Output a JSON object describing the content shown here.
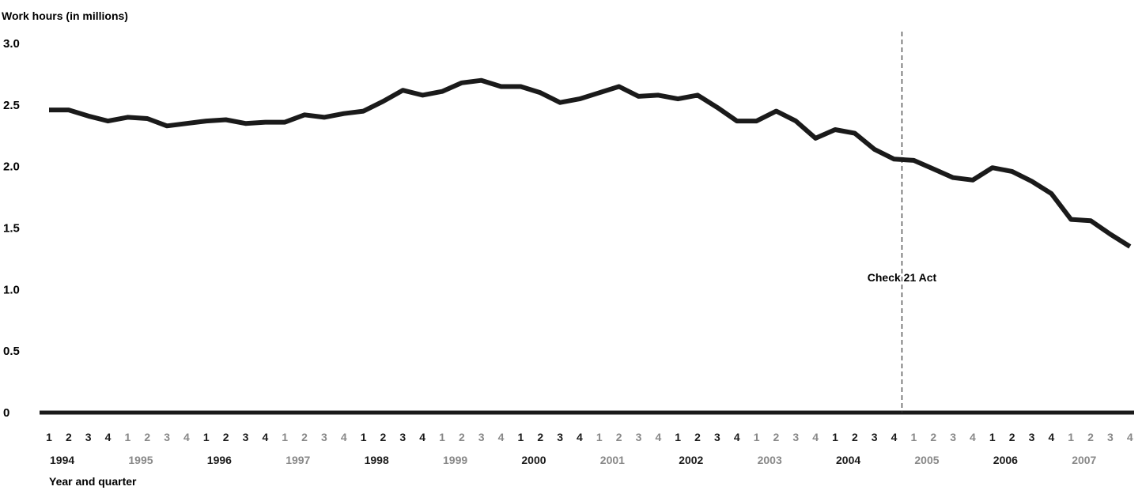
{
  "chart_data": {
    "type": "line",
    "title": "",
    "ylabel": "Work hours (in millions)",
    "xlabel": "Year and quarter",
    "ylim": [
      0,
      3.0
    ],
    "yticks": [
      "3.0",
      "2.5",
      "2.0",
      "1.5",
      "1.0",
      "0.5",
      "0"
    ],
    "ytick_values": [
      3.0,
      2.5,
      2.0,
      1.5,
      1.0,
      0.5,
      0
    ],
    "quarter_labels": [
      "1",
      "2",
      "3",
      "4",
      "1",
      "2",
      "3",
      "4",
      "1",
      "2",
      "3",
      "4",
      "1",
      "2",
      "3",
      "4",
      "1",
      "2",
      "3",
      "4",
      "1",
      "2",
      "3",
      "4",
      "1",
      "2",
      "3",
      "4",
      "1",
      "2",
      "3",
      "4",
      "1",
      "2",
      "3",
      "4",
      "1",
      "2",
      "3",
      "4",
      "1",
      "2",
      "3",
      "4",
      "1",
      "2",
      "3",
      "4",
      "1",
      "2",
      "3",
      "4",
      "1",
      "2",
      "3",
      "4"
    ],
    "years": [
      "1994",
      "1995",
      "1996",
      "1997",
      "1998",
      "1999",
      "2000",
      "2001",
      "2002",
      "2003",
      "2004",
      "2005",
      "2006",
      "2007"
    ],
    "grid": false,
    "series": [
      {
        "values": [
          2.46,
          2.46,
          2.41,
          2.37,
          2.4,
          2.39,
          2.33,
          2.35,
          2.37,
          2.38,
          2.35,
          2.36,
          2.36,
          2.42,
          2.4,
          2.43,
          2.45,
          2.53,
          2.62,
          2.58,
          2.61,
          2.68,
          2.7,
          2.65,
          2.65,
          2.6,
          2.52,
          2.55,
          2.6,
          2.65,
          2.57,
          2.58,
          2.55,
          2.58,
          2.48,
          2.37,
          2.37,
          2.45,
          2.37,
          2.23,
          2.3,
          2.27,
          2.14,
          2.06,
          2.05,
          1.98,
          1.91,
          1.89,
          1.99,
          1.96,
          1.88,
          1.78,
          1.57,
          1.56,
          1.45,
          1.35
        ]
      }
    ],
    "annotations": [
      {
        "text": "Check 21 Act",
        "x_index": 43.4
      }
    ],
    "colors": {
      "line": "#1a1a1a",
      "axis": "#1a1a1a",
      "year_dark": "#1a1a1a",
      "year_light": "#888888"
    }
  }
}
